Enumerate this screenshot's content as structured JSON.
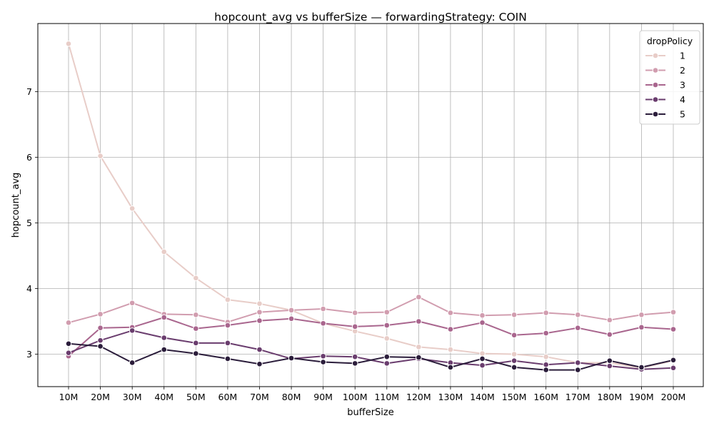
{
  "chart_data": {
    "type": "line",
    "title": "hopcount_avg vs bufferSize — forwardingStrategy: COIN",
    "xlabel": "bufferSize",
    "ylabel": "hopcount_avg",
    "categories": [
      "10M",
      "20M",
      "30M",
      "40M",
      "50M",
      "60M",
      "70M",
      "80M",
      "90M",
      "100M",
      "110M",
      "120M",
      "130M",
      "140M",
      "150M",
      "160M",
      "170M",
      "180M",
      "190M",
      "200M"
    ],
    "ylim": [
      2.5,
      8.05
    ],
    "yticks": [
      3,
      4,
      5,
      6,
      7
    ],
    "grid": true,
    "legend": {
      "title": "dropPolicy",
      "placement": "top-right"
    },
    "series": [
      {
        "name": "1",
        "color": "#e8cdc8",
        "values": [
          7.73,
          6.02,
          5.22,
          4.56,
          4.16,
          3.83,
          3.77,
          3.67,
          3.47,
          3.35,
          3.24,
          3.11,
          3.07,
          3.01,
          3.0,
          2.96,
          2.87,
          2.87,
          2.79,
          2.9
        ]
      },
      {
        "name": "2",
        "color": "#d19daf",
        "values": [
          3.48,
          3.61,
          3.78,
          3.61,
          3.6,
          3.49,
          3.64,
          3.67,
          3.69,
          3.63,
          3.64,
          3.87,
          3.63,
          3.59,
          3.6,
          3.63,
          3.6,
          3.52,
          3.6,
          3.64
        ]
      },
      {
        "name": "3",
        "color": "#a9668e",
        "values": [
          2.97,
          3.4,
          3.41,
          3.56,
          3.39,
          3.44,
          3.51,
          3.54,
          3.47,
          3.42,
          3.44,
          3.5,
          3.38,
          3.48,
          3.29,
          3.32,
          3.4,
          3.3,
          3.41,
          3.38
        ]
      },
      {
        "name": "4",
        "color": "#6a3d6e",
        "values": [
          3.02,
          3.21,
          3.36,
          3.25,
          3.17,
          3.17,
          3.07,
          2.93,
          2.97,
          2.96,
          2.86,
          2.93,
          2.87,
          2.83,
          2.9,
          2.84,
          2.87,
          2.82,
          2.77,
          2.79
        ]
      },
      {
        "name": "5",
        "color": "#2b1d3b",
        "values": [
          3.16,
          3.12,
          2.87,
          3.07,
          3.01,
          2.93,
          2.85,
          2.94,
          2.88,
          2.86,
          2.96,
          2.95,
          2.8,
          2.93,
          2.8,
          2.76,
          2.76,
          2.9,
          2.8,
          2.91
        ]
      }
    ]
  }
}
